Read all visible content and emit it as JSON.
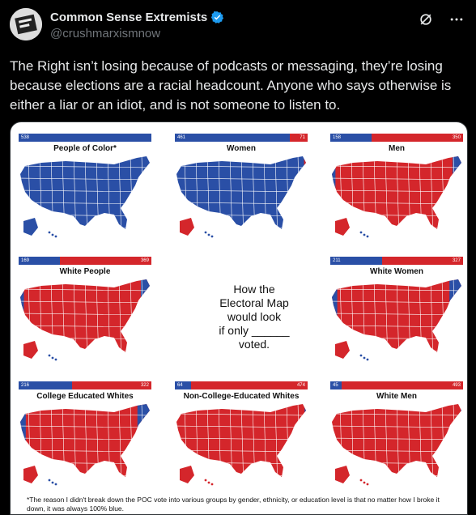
{
  "author": {
    "name": "Common Sense Extremists",
    "handle": "@crushmarxismnow"
  },
  "tweet": {
    "text": "The Right isn’t losing because of podcasts or messaging, they’re losing because elections are a racial headcount.  Anyone who says otherwise is either a liar or an idiot, and is not someone to listen to."
  },
  "colors": {
    "blue": "#2a4fa6",
    "red": "#d4262b"
  },
  "image": {
    "center_text": [
      "How the",
      "Electoral Map",
      "would look",
      "if only ______",
      "voted."
    ],
    "footnote": "*The reason I didn't break down the POC vote into various groups by gender, ethnicity, or education level is that no matter how I broke it down, it was always 100% blue.",
    "panels": [
      {
        "title": "People of Color*",
        "blue_votes": "538",
        "red_votes": "",
        "blue_frac": 1.0
      },
      {
        "title": "Women",
        "blue_votes": "461",
        "red_votes": "71",
        "blue_frac": 0.866
      },
      {
        "title": "Men",
        "blue_votes": "158",
        "red_votes": "350",
        "blue_frac": 0.311
      },
      {
        "title": "White People",
        "blue_votes": "169",
        "red_votes": "369",
        "blue_frac": 0.314
      },
      {
        "title": "White Women",
        "blue_votes": "211",
        "red_votes": "327",
        "blue_frac": 0.392
      },
      {
        "title": "College Educated Whites",
        "blue_votes": "216",
        "red_votes": "322",
        "blue_frac": 0.401
      },
      {
        "title": "Non-College-Educated Whites",
        "blue_votes": "64",
        "red_votes": "474",
        "blue_frac": 0.119
      },
      {
        "title": "White Men",
        "blue_votes": "45",
        "red_votes": "493",
        "blue_frac": 0.084
      }
    ]
  }
}
